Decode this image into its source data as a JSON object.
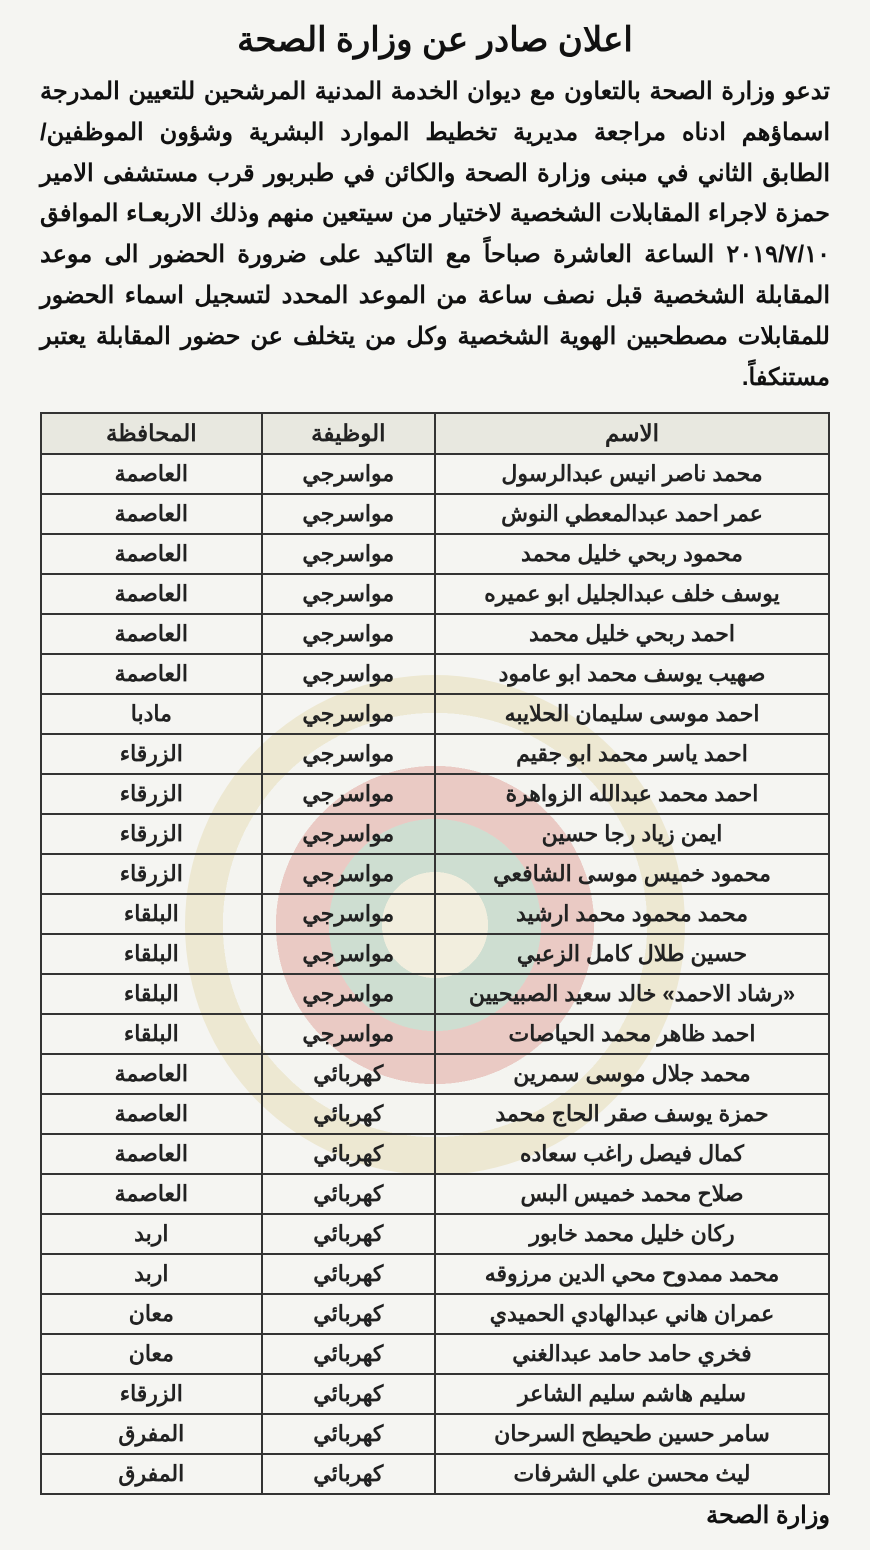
{
  "title": "اعلان صادر عن وزارة الصحة",
  "body": "تدعو وزارة الصحة بالتعاون مع ديوان الخدمة المدنية المرشحين للتعيين المدرجة اسماؤهم ادناه مراجعة مديرية تخطيط الموارد البشرية وشؤون الموظفين/ الطابق الثاني في مبنى وزارة الصحة والكائن في طبربور قرب مستشفى الامير حمزة لاجراء المقابلات الشخصية لاختيار من سيتعين منهم وذلك الاربعـاء الموافق ٢٠١٩/٧/١٠ الساعة العاشرة صباحاً مع التاكيد على ضرورة الحضور الى موعد المقابلة الشخصية قبل نصف ساعة من الموعد المحدد لتسجيل اسماء الحضور للمقابلات مصطحبين الهوية الشخصية وكل من يتخلف عن حضور المقابلة يعتبر مستنكفاً.",
  "headers": {
    "name": "الاسم",
    "job": "الوظيفة",
    "gov": "المحافظة"
  },
  "rows": [
    {
      "name": "محمد ناصر انيس عبدالرسول",
      "job": "مواسرجي",
      "gov": "العاصمة"
    },
    {
      "name": "عمر احمد عبدالمعطي النوش",
      "job": "مواسرجي",
      "gov": "العاصمة"
    },
    {
      "name": "محمود ربحي خليل محمد",
      "job": "مواسرجي",
      "gov": "العاصمة"
    },
    {
      "name": "يوسف خلف عبدالجليل ابو عميره",
      "job": "مواسرجي",
      "gov": "العاصمة"
    },
    {
      "name": "احمد ربحي خليل محمد",
      "job": "مواسرجي",
      "gov": "العاصمة"
    },
    {
      "name": "صهيب يوسف محمد ابو عامود",
      "job": "مواسرجي",
      "gov": "العاصمة"
    },
    {
      "name": "احمد موسى سليمان الحلايبه",
      "job": "مواسرجي",
      "gov": "مادبا"
    },
    {
      "name": "احمد ياسر محمد ابو جقيم",
      "job": "مواسرجي",
      "gov": "الزرقاء"
    },
    {
      "name": "احمد محمد عبدالله الزواهرة",
      "job": "مواسرجي",
      "gov": "الزرقاء"
    },
    {
      "name": "ايمن زياد رجا حسين",
      "job": "مواسرجي",
      "gov": "الزرقاء"
    },
    {
      "name": "محمود خميس موسى الشافعي",
      "job": "مواسرجي",
      "gov": "الزرقاء"
    },
    {
      "name": "محمد محمود محمد ارشيد",
      "job": "مواسرجي",
      "gov": "البلقاء"
    },
    {
      "name": "حسين طلال كامل الزعبي",
      "job": "مواسرجي",
      "gov": "البلقاء"
    },
    {
      "name": "«رشاد الاحمد» خالد سعيد الصبيحيين",
      "job": "مواسرجي",
      "gov": "البلقاء"
    },
    {
      "name": "احمد ظاهر محمد الحياصات",
      "job": "مواسرجي",
      "gov": "البلقاء"
    },
    {
      "name": "محمد جلال موسى سمرين",
      "job": "كهربائي",
      "gov": "العاصمة"
    },
    {
      "name": "حمزة يوسف صقر الحاج محمد",
      "job": "كهربائي",
      "gov": "العاصمة"
    },
    {
      "name": "كمال فيصل راغب سعاده",
      "job": "كهربائي",
      "gov": "العاصمة"
    },
    {
      "name": "صلاح محمد خميس البس",
      "job": "كهربائي",
      "gov": "العاصمة"
    },
    {
      "name": "ركان خليل محمد خابور",
      "job": "كهربائي",
      "gov": "اربد"
    },
    {
      "name": "محمد ممدوح محي الدين مرزوقه",
      "job": "كهربائي",
      "gov": "اربد"
    },
    {
      "name": "عمران هاني عبدالهادي الحميدي",
      "job": "كهربائي",
      "gov": "معان"
    },
    {
      "name": "فخري حامد حامد عبدالغني",
      "job": "كهربائي",
      "gov": "معان"
    },
    {
      "name": "سليم هاشم سليم الشاعر",
      "job": "كهربائي",
      "gov": "الزرقاء"
    },
    {
      "name": "سامر حسين طحيطح السرحان",
      "job": "كهربائي",
      "gov": "المفرق"
    },
    {
      "name": "ليث محسن علي الشرفات",
      "job": "كهربائي",
      "gov": "المفرق"
    }
  ],
  "footer": "وزارة الصحة"
}
